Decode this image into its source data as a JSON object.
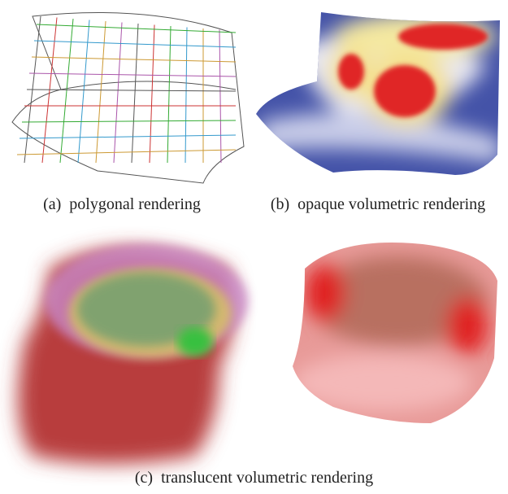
{
  "figure": {
    "panels": [
      {
        "caption": "(a)  polygonal rendering"
      },
      {
        "caption": "(b)  opaque volumetric rendering"
      },
      {
        "caption": "(c)  translucent volumetric rendering"
      }
    ]
  }
}
